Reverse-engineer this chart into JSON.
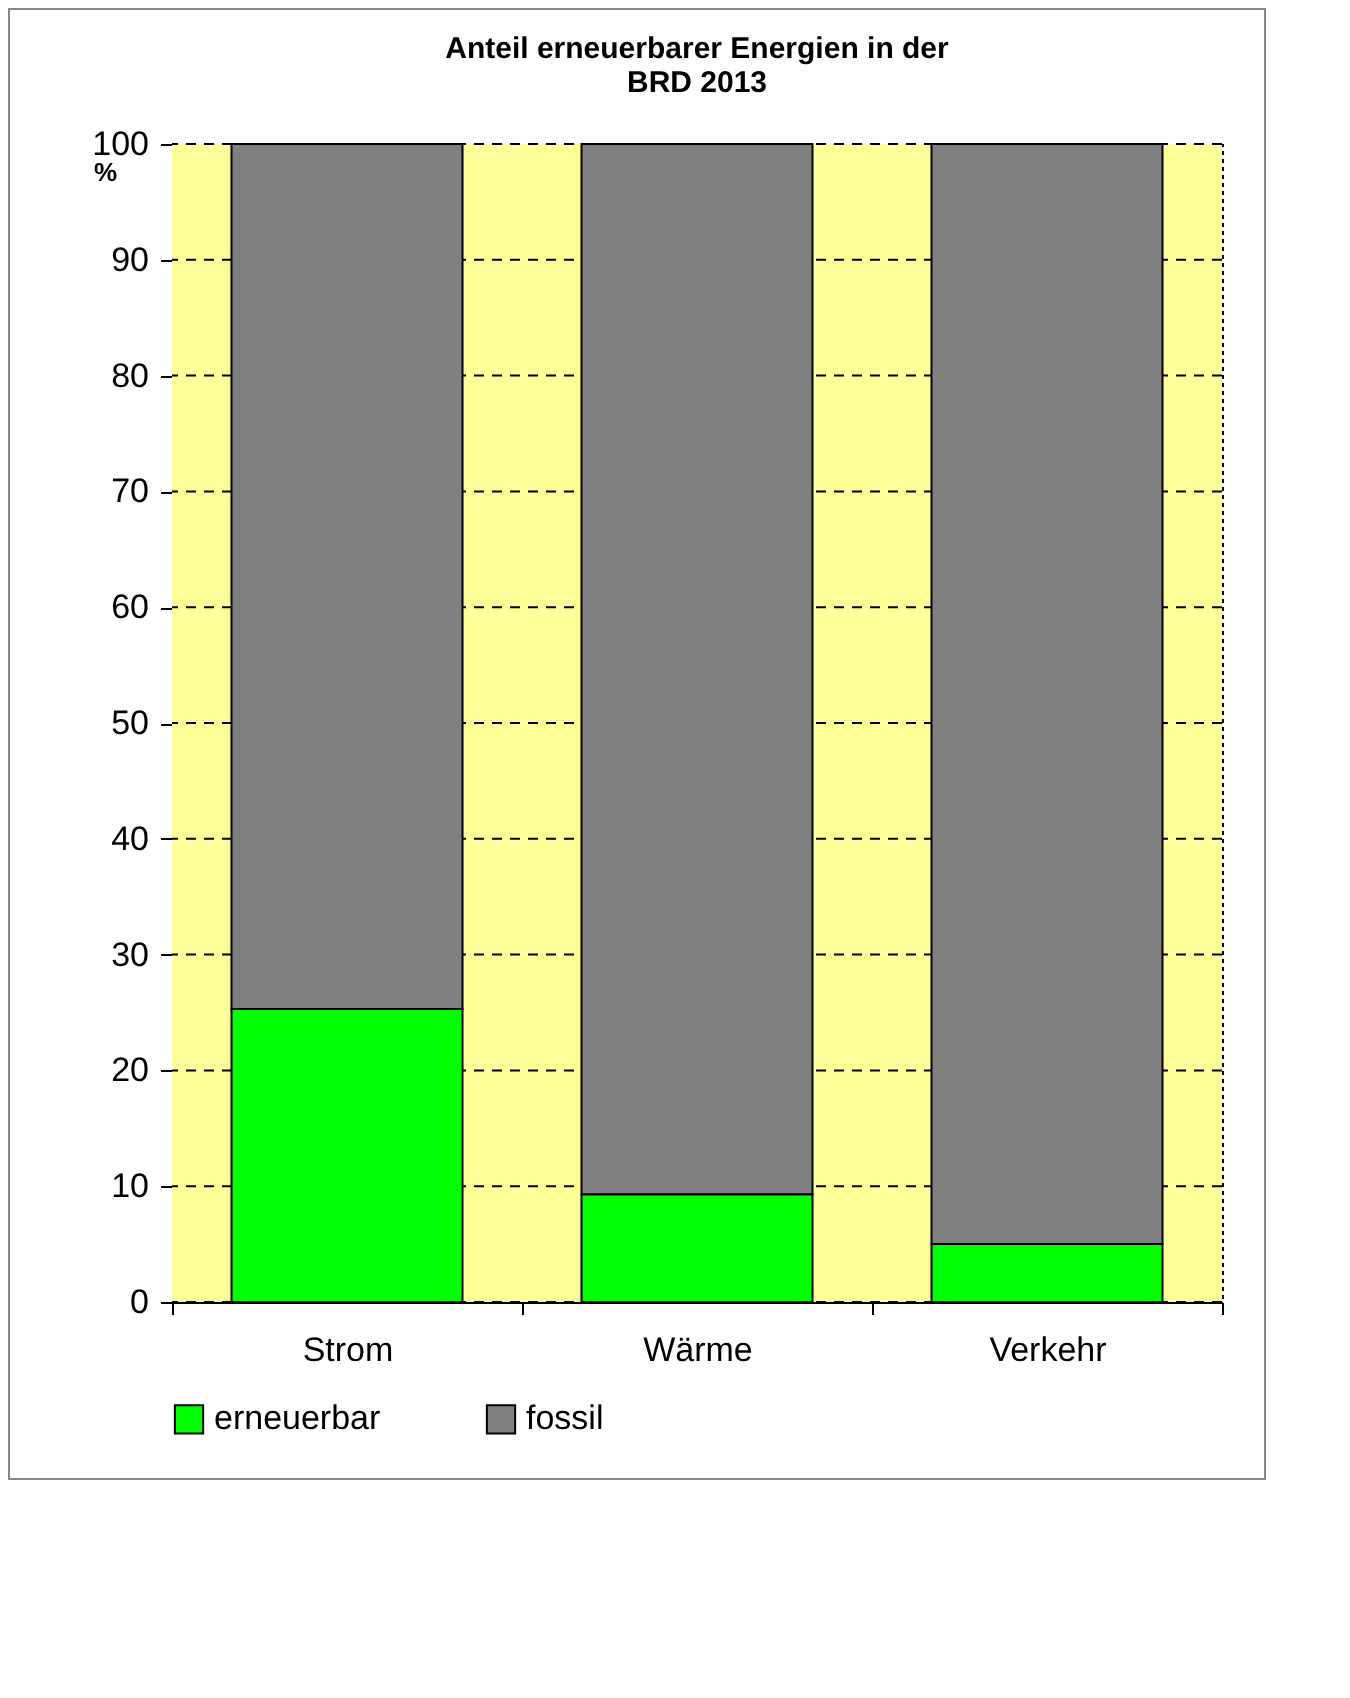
{
  "chart_data": {
    "type": "bar",
    "title": [
      "Anteil erneuerbarer Energien in der",
      "BRD 2013"
    ],
    "ylabel": "%",
    "categories": [
      "Strom",
      "Wärme",
      "Verkehr"
    ],
    "stacked": true,
    "series": [
      {
        "name": "erneuerbar",
        "color": "#00ff00",
        "values": [
          25.3,
          9.3,
          5
        ]
      },
      {
        "name": "fossil",
        "color": "#808080",
        "values": [
          74.7,
          90.7,
          95
        ]
      }
    ],
    "ylim": [
      0,
      100
    ],
    "yticks": [
      0,
      10,
      20,
      30,
      40,
      50,
      60,
      70,
      80,
      90,
      100
    ],
    "grid": "y",
    "legend": "bottom",
    "bands": [
      {
        "axis": "y",
        "from": 0,
        "to": 100,
        "color": "#ffff99"
      }
    ]
  }
}
